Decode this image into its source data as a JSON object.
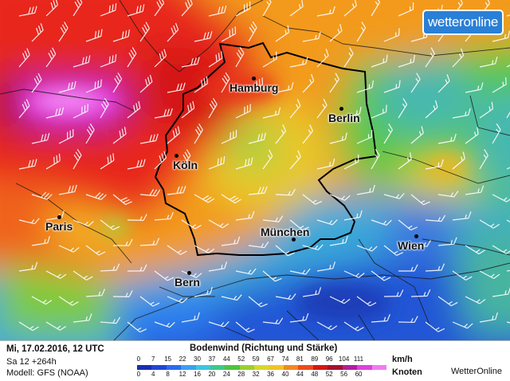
{
  "logo": {
    "text": "wetteronline"
  },
  "cities": [
    {
      "name": "Hamburg"
    },
    {
      "name": "Berlin"
    },
    {
      "name": "Köln"
    },
    {
      "name": "Paris"
    },
    {
      "name": "München"
    },
    {
      "name": "Wien"
    },
    {
      "name": "Bern"
    }
  ],
  "footer": {
    "date": "Mi, 17.02.2016, 12 UTC",
    "run": "Sa 12 +264h",
    "model": "Modell: GFS (NOAA)",
    "title": "Bodenwind (Richtung und Stärke)",
    "unit_kmh": "km/h",
    "unit_knots": "Knoten",
    "brand": "WetterOnline"
  },
  "legend": {
    "kmh_ticks": [
      "0",
      "7",
      "15",
      "22",
      "30",
      "37",
      "44",
      "52",
      "59",
      "67",
      "74",
      "81",
      "89",
      "96",
      "104",
      "111"
    ],
    "knot_ticks": [
      "0",
      "4",
      "8",
      "12",
      "16",
      "20",
      "24",
      "28",
      "32",
      "36",
      "40",
      "44",
      "48",
      "52",
      "56",
      "60"
    ],
    "colors": [
      "#1a2fb0",
      "#2046d8",
      "#2a6bf0",
      "#3aa0f2",
      "#3cc6e0",
      "#3cc98a",
      "#4ec43c",
      "#9ad030",
      "#d8d82a",
      "#f2c226",
      "#f28a1e",
      "#ee4a1a",
      "#d41818",
      "#a8102e",
      "#b0209a",
      "#e040e0",
      "#f07cf0"
    ]
  }
}
